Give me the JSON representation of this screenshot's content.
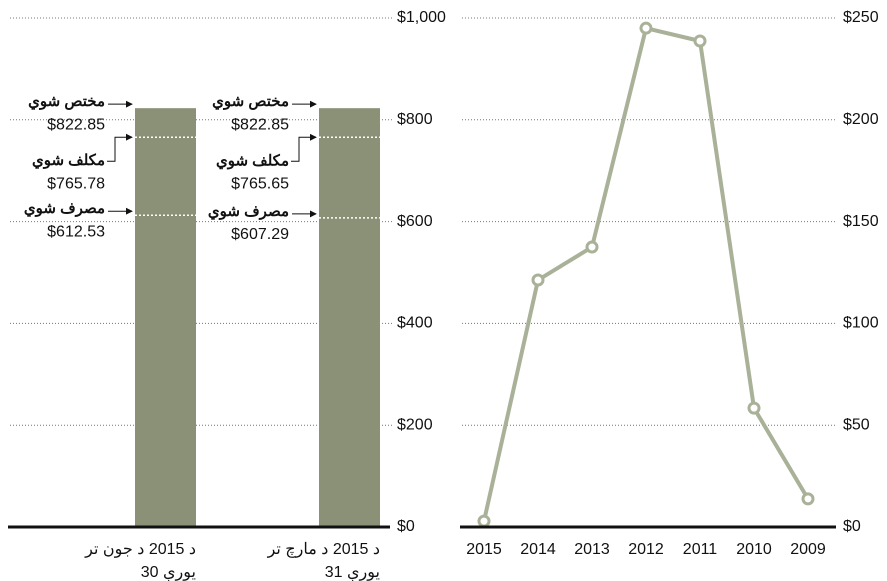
{
  "chart_data": [
    {
      "type": "bar",
      "categories": [
        [
          "د 2015 د جون تر",
          "30 یورې"
        ],
        [
          "د 2015 د مارچ تر",
          "31 یورې"
        ]
      ],
      "values": [
        822.85,
        822.85
      ],
      "color": "#8b9177",
      "markers": [
        {
          "name": "مختص شوي",
          "values": [
            822.85,
            822.85
          ],
          "value_labels": [
            "$822.85",
            "$822.85"
          ]
        },
        {
          "name": "مکلف شوي",
          "values": [
            765.78,
            765.65
          ],
          "value_labels": [
            "$765.78",
            "$765.65"
          ]
        },
        {
          "name": "مصرف شوي",
          "values": [
            612.53,
            607.29
          ],
          "value_labels": [
            "$612.53",
            "$607.29"
          ]
        }
      ],
      "ylim": [
        0,
        1000
      ],
      "yticks": [
        {
          "value": 0,
          "label": "$0"
        },
        {
          "value": 200,
          "label": "$200"
        },
        {
          "value": 400,
          "label": "$400"
        },
        {
          "value": 600,
          "label": "$600"
        },
        {
          "value": 800,
          "label": "$800"
        },
        {
          "value": 1000,
          "label": "$1,000"
        }
      ],
      "grid": true
    },
    {
      "type": "line",
      "categories": [
        "2015",
        "2014",
        "2013",
        "2012",
        "2011",
        "2010",
        "2009"
      ],
      "series": [
        {
          "color": "#a9b298",
          "values": [
            2.9,
            121.3,
            137.5,
            245,
            238.7,
            58.4,
            13.8
          ]
        }
      ],
      "ylim": [
        0,
        250
      ],
      "yticks": [
        {
          "value": 0,
          "label": "$0"
        },
        {
          "value": 50,
          "label": "$50"
        },
        {
          "value": 100,
          "label": "$100"
        },
        {
          "value": 150,
          "label": "$150"
        },
        {
          "value": 200,
          "label": "$200"
        },
        {
          "value": 250,
          "label": "$250"
        }
      ],
      "grid": true
    }
  ]
}
